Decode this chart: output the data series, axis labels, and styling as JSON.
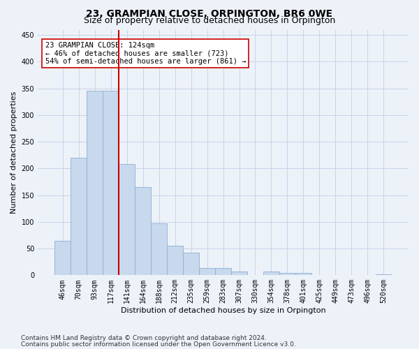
{
  "title": "23, GRAMPIAN CLOSE, ORPINGTON, BR6 0WE",
  "subtitle": "Size of property relative to detached houses in Orpington",
  "xlabel": "Distribution of detached houses by size in Orpington",
  "ylabel": "Number of detached properties",
  "categories": [
    "46sqm",
    "70sqm",
    "93sqm",
    "117sqm",
    "141sqm",
    "164sqm",
    "188sqm",
    "212sqm",
    "235sqm",
    "259sqm",
    "283sqm",
    "307sqm",
    "330sqm",
    "354sqm",
    "378sqm",
    "401sqm",
    "425sqm",
    "449sqm",
    "473sqm",
    "496sqm",
    "520sqm"
  ],
  "values": [
    65,
    220,
    345,
    345,
    208,
    165,
    97,
    55,
    42,
    13,
    13,
    7,
    0,
    7,
    5,
    4,
    0,
    0,
    0,
    0,
    2
  ],
  "bar_color": "#c8d9ed",
  "bar_edge_color": "#8aafd4",
  "grid_color": "#c8d4e8",
  "background_color": "#edf2f9",
  "vline_x": 3.5,
  "vline_color": "#cc0000",
  "annotation_text": "23 GRAMPIAN CLOSE: 124sqm\n← 46% of detached houses are smaller (723)\n54% of semi-detached houses are larger (861) →",
  "annotation_box_color": "#ffffff",
  "annotation_box_edge_color": "#cc0000",
  "footnote1": "Contains HM Land Registry data © Crown copyright and database right 2024.",
  "footnote2": "Contains public sector information licensed under the Open Government Licence v3.0.",
  "title_fontsize": 10,
  "subtitle_fontsize": 9,
  "xlabel_fontsize": 8,
  "ylabel_fontsize": 8,
  "tick_fontsize": 7,
  "annotation_fontsize": 7.5,
  "footnote_fontsize": 6.5,
  "ylim": [
    0,
    460
  ]
}
